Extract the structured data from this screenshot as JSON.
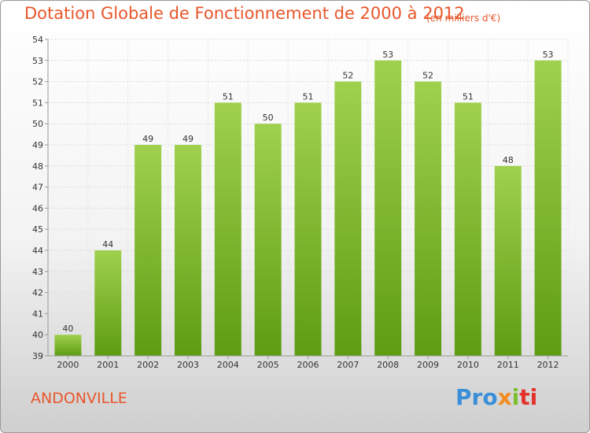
{
  "title": "Dotation Globale de Fonctionnement de 2000 à 2012",
  "subtitle": "(en milliers d'€)",
  "commune": "ANDONVILLE",
  "logo": {
    "text": "Proxiti",
    "parts": [
      "Pro",
      "x",
      "i",
      "ti"
    ]
  },
  "colors": {
    "title": "#e8562a",
    "bar_top": "#9fd14f",
    "bar_bottom": "#5e9c12"
  },
  "chart_data": {
    "type": "bar",
    "title": "Dotation Globale de Fonctionnement de 2000 à 2012",
    "subtitle": "(en milliers d'€)",
    "categories": [
      "2000",
      "2001",
      "2002",
      "2003",
      "2004",
      "2005",
      "2006",
      "2007",
      "2008",
      "2009",
      "2010",
      "2011",
      "2012"
    ],
    "values": [
      40,
      44,
      49,
      49,
      51,
      50,
      51,
      52,
      53,
      52,
      51,
      48,
      53
    ],
    "ylim": [
      39,
      54
    ],
    "yticks": [
      39,
      40,
      41,
      42,
      43,
      44,
      45,
      46,
      47,
      48,
      49,
      50,
      51,
      52,
      53,
      54
    ],
    "grid": true,
    "legend": "none"
  }
}
